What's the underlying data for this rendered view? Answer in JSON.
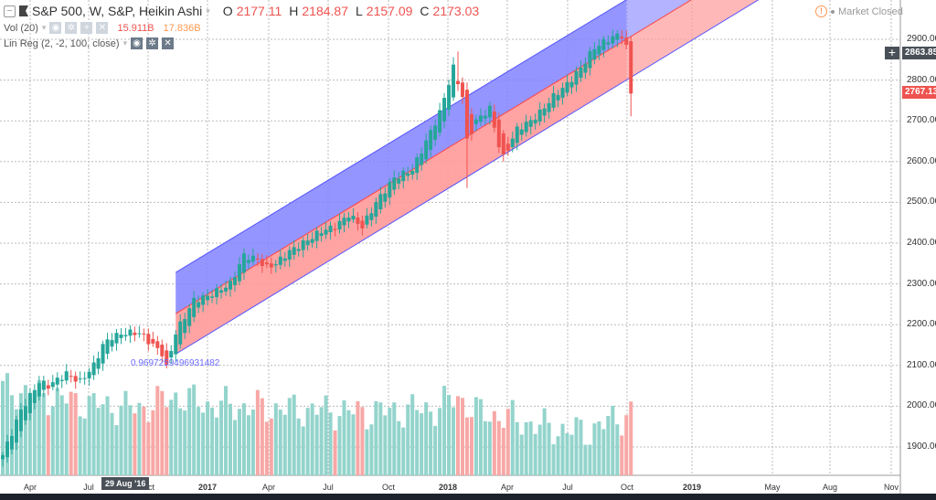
{
  "legend": {
    "symbol": "S&P 500, W, S&P, Heikin Ashi",
    "o_label": "O",
    "o": "2177.11",
    "h_label": "H",
    "h": "2184.87",
    "l_label": "L",
    "l": "2157.09",
    "c_label": "C",
    "c": "2173.03",
    "vol_label": "Vol (20)",
    "vol_value": "15.911B",
    "vol_ma": "17.836B",
    "linreg_label": "Lin Reg (2, -2, 100, close)"
  },
  "status": {
    "market": "Market Closed"
  },
  "price_axis": {
    "ticks": [
      "2900.00",
      "2800.00",
      "2700.00",
      "2600.00",
      "2500.00",
      "2400.00",
      "2300.00",
      "2200.00",
      "2100.00",
      "2000.00",
      "1900.00"
    ],
    "crosshair_price": "2863.85",
    "last_price": "2767.13"
  },
  "time_axis": {
    "ticks": [
      "Apr",
      "Jul",
      "Oct",
      "2017",
      "Apr",
      "Jul",
      "Oct",
      "2018",
      "Apr",
      "Jul",
      "Oct",
      "2019",
      "May",
      "Aug",
      "Nov"
    ],
    "crosshair_date": "29 Aug '16"
  },
  "regression_label": "0.9697259496931482",
  "colors": {
    "up": "#26a69a",
    "down": "#ef5350",
    "vol_up": "#93d4cc",
    "vol_down": "#f7a8a6",
    "channel_upper": "#8080ff",
    "channel_lower": "#ff9a9a"
  },
  "chart_data": {
    "type": "candlestick",
    "title": "S&P 500, W, Heikin Ashi",
    "ylim": [
      1860,
      3000
    ],
    "weeks": 139,
    "close_keypoints": [
      [
        0,
        1880
      ],
      [
        4,
        1990
      ],
      [
        8,
        2060
      ],
      [
        10,
        2050
      ],
      [
        14,
        2080
      ],
      [
        17,
        2060
      ],
      [
        20,
        2100
      ],
      [
        22,
        2150
      ],
      [
        24,
        2170
      ],
      [
        27,
        2180
      ],
      [
        30,
        2180
      ],
      [
        33,
        2150
      ],
      [
        35,
        2130
      ],
      [
        36,
        2095
      ],
      [
        38,
        2180
      ],
      [
        40,
        2220
      ],
      [
        42,
        2260
      ],
      [
        45,
        2270
      ],
      [
        50,
        2300
      ],
      [
        53,
        2370
      ],
      [
        56,
        2360
      ],
      [
        58,
        2340
      ],
      [
        60,
        2350
      ],
      [
        63,
        2380
      ],
      [
        66,
        2400
      ],
      [
        70,
        2430
      ],
      [
        73,
        2440
      ],
      [
        76,
        2470
      ],
      [
        79,
        2440
      ],
      [
        82,
        2500
      ],
      [
        86,
        2560
      ],
      [
        90,
        2580
      ],
      [
        93,
        2650
      ],
      [
        96,
        2720
      ],
      [
        99,
        2830
      ],
      [
        101,
        2760
      ],
      [
        102,
        2650
      ],
      [
        104,
        2700
      ],
      [
        107,
        2730
      ],
      [
        109,
        2640
      ],
      [
        110,
        2610
      ],
      [
        113,
        2680
      ],
      [
        116,
        2700
      ],
      [
        118,
        2720
      ],
      [
        121,
        2760
      ],
      [
        124,
        2790
      ],
      [
        127,
        2830
      ],
      [
        130,
        2880
      ],
      [
        133,
        2900
      ],
      [
        135,
        2910
      ],
      [
        136,
        2910
      ],
      [
        137,
        2880
      ],
      [
        138,
        2767
      ]
    ],
    "volume_keypoints_B": [
      [
        0,
        22
      ],
      [
        10,
        20
      ],
      [
        20,
        18
      ],
      [
        30,
        17
      ],
      [
        38,
        20
      ],
      [
        45,
        18
      ],
      [
        60,
        17
      ],
      [
        80,
        16
      ],
      [
        95,
        17
      ],
      [
        100,
        20
      ],
      [
        104,
        16
      ],
      [
        110,
        15
      ],
      [
        120,
        12
      ],
      [
        128,
        11
      ],
      [
        138,
        16
      ]
    ],
    "linreg": {
      "start_week": 38,
      "end_week": 137,
      "upper": [
        2328,
        2997
      ],
      "middle": [
        2227,
        2900
      ],
      "lower": [
        2128,
        2800
      ]
    }
  }
}
